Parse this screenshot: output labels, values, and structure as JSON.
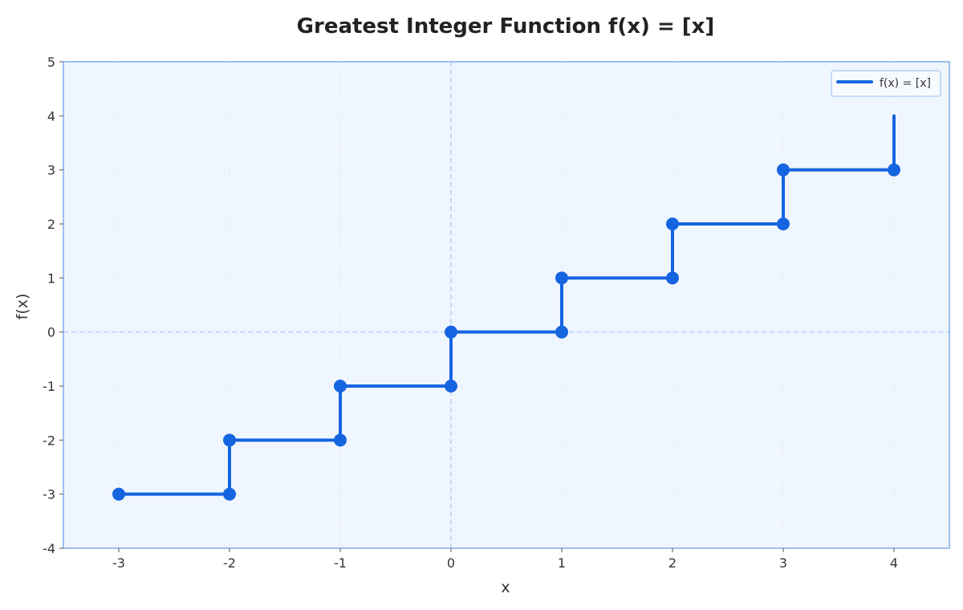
{
  "chart_data": {
    "type": "line",
    "title": "Greatest Integer Function f(x) = [x]",
    "xlabel": "x",
    "ylabel": "f(x)",
    "xlim": [
      -3.5,
      4.5
    ],
    "ylim": [
      -4,
      5
    ],
    "xticks": [
      "-3",
      "-2",
      "-1",
      "0",
      "1",
      "2",
      "3",
      "4"
    ],
    "yticks": [
      "-4",
      "-3",
      "-2",
      "-1",
      "0",
      "1",
      "2",
      "3",
      "4",
      "5"
    ],
    "grid": true,
    "legend_position": "top-right",
    "series": [
      {
        "name": "f(x) = [x]",
        "color": "#1565e0",
        "segments": [
          {
            "x_start": -3,
            "x_end": -2,
            "y": -3
          },
          {
            "x_start": -2,
            "x_end": -1,
            "y": -2
          },
          {
            "x_start": -1,
            "x_end": 0,
            "y": -1
          },
          {
            "x_start": 0,
            "x_end": 1,
            "y": 0
          },
          {
            "x_start": 1,
            "x_end": 2,
            "y": 1
          },
          {
            "x_start": 2,
            "x_end": 3,
            "y": 2
          },
          {
            "x_start": 3,
            "x_end": 4,
            "y": 3
          }
        ],
        "jumps": [
          {
            "x": -2,
            "from": -3,
            "to": -2
          },
          {
            "x": -1,
            "from": -2,
            "to": -1
          },
          {
            "x": 0,
            "from": -1,
            "to": 0
          },
          {
            "x": 1,
            "from": 0,
            "to": 1
          },
          {
            "x": 2,
            "from": 1,
            "to": 2
          },
          {
            "x": 3,
            "from": 2,
            "to": 3
          },
          {
            "x": 4,
            "from": 3,
            "to": 4
          }
        ],
        "points": [
          {
            "x": -3,
            "y": -3
          },
          {
            "x": -2,
            "y": -3
          },
          {
            "x": -2,
            "y": -2
          },
          {
            "x": -1,
            "y": -2
          },
          {
            "x": -1,
            "y": -1
          },
          {
            "x": 0,
            "y": -1
          },
          {
            "x": 0,
            "y": 0
          },
          {
            "x": 1,
            "y": 0
          },
          {
            "x": 1,
            "y": 1
          },
          {
            "x": 2,
            "y": 1
          },
          {
            "x": 2,
            "y": 2
          },
          {
            "x": 3,
            "y": 2
          },
          {
            "x": 3,
            "y": 3
          },
          {
            "x": 4,
            "y": 3
          }
        ]
      }
    ],
    "colors": {
      "plot_background": "#f0f6fe",
      "plot_border": "#9dc0ef",
      "grid": "#dde7f5",
      "zero_line": "#b9d4f6"
    }
  }
}
